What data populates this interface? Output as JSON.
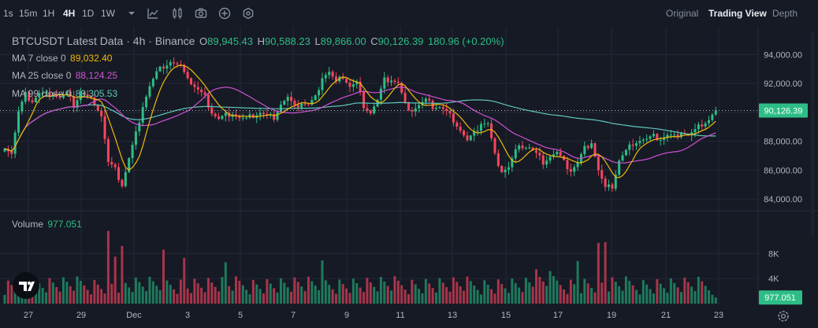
{
  "toolbar": {
    "intervals": [
      "1s",
      "15m",
      "1H",
      "4H",
      "1D",
      "1W"
    ],
    "active_interval": "4H",
    "views": [
      "Original",
      "Trading View",
      "Depth"
    ],
    "active_view": "Trading View",
    "icons": [
      "dropdown-caret-icon",
      "indicators-icon",
      "candle-style-icon",
      "screenshot-icon",
      "add-icon",
      "settings-hex-icon"
    ]
  },
  "legend": {
    "title": "BTCUSDT Latest Data · 4h · Binance",
    "ohlc": {
      "o_label": "O",
      "o": "89,945.43",
      "h_label": "H",
      "h": "90,588.23",
      "l_label": "L",
      "l": "89,866.00",
      "c_label": "C",
      "c": "90,126.39",
      "change": "180.96 (+0.20%)"
    },
    "ma7_label": "MA 7 close 0",
    "ma7_value": "89,032.40",
    "ma25_label": "MA 25 close 0",
    "ma25_value": "88,124.25",
    "ma99_label": "MA 99 close 0",
    "ma99_value": "89,305.53",
    "volume_label": "Volume",
    "volume_value": "977.051"
  },
  "colors": {
    "up": "#2dbd85",
    "down": "#f6465d",
    "ma7": "#f0b90b",
    "ma25": "#d152d4",
    "ma99": "#5ec8bc",
    "vol_up": "#1e7a5c",
    "vol_down": "#a8354a",
    "grid": "#242836",
    "background": "#161a25"
  },
  "chart_data": [
    {
      "type": "candlestick",
      "title": "BTCUSDT Latest Data · 4h · Binance",
      "x_ticks": [
        "27",
        "29",
        "Dec",
        "3",
        "5",
        "7",
        "9",
        "11",
        "13",
        "15",
        "17",
        "19",
        "21",
        "23"
      ],
      "y_ticks": [
        "84,000.00",
        "86,000.00",
        "88,000.00",
        "90,000.00",
        "92,000.00",
        "94,000.00"
      ],
      "y_tick_values": [
        84000,
        86000,
        88000,
        90000,
        92000,
        94000
      ],
      "ylim": [
        83300,
        95700
      ],
      "last_price": "90,126.39",
      "last_price_value": 90126.39,
      "grid": true,
      "close_anchors": [
        [
          0,
          87700
        ],
        [
          2,
          87200
        ],
        [
          4,
          90000
        ],
        [
          6,
          91200
        ],
        [
          8,
          90800
        ],
        [
          10,
          91300
        ],
        [
          12,
          91200
        ],
        [
          14,
          91400
        ],
        [
          16,
          91000
        ],
        [
          18,
          91300
        ],
        [
          20,
          90500
        ],
        [
          22,
          91400
        ],
        [
          24,
          91000
        ],
        [
          26,
          90700
        ],
        [
          28,
          89800
        ],
        [
          30,
          86500
        ],
        [
          32,
          86000
        ],
        [
          34,
          85000
        ],
        [
          36,
          86800
        ],
        [
          38,
          88500
        ],
        [
          40,
          90500
        ],
        [
          42,
          91800
        ],
        [
          44,
          92700
        ],
        [
          46,
          93200
        ],
        [
          48,
          93500
        ],
        [
          50,
          93200
        ],
        [
          52,
          93000
        ],
        [
          54,
          92000
        ],
        [
          56,
          91500
        ],
        [
          58,
          91000
        ],
        [
          60,
          90000
        ],
        [
          62,
          89500
        ],
        [
          64,
          89800
        ],
        [
          66,
          90000
        ],
        [
          68,
          89600
        ],
        [
          70,
          89500
        ],
        [
          72,
          89800
        ],
        [
          74,
          90000
        ],
        [
          76,
          89700
        ],
        [
          78,
          89700
        ],
        [
          80,
          90600
        ],
        [
          82,
          91000
        ],
        [
          84,
          90300
        ],
        [
          86,
          90700
        ],
        [
          88,
          90500
        ],
        [
          90,
          91000
        ],
        [
          92,
          92500
        ],
        [
          94,
          92800
        ],
        [
          96,
          92000
        ],
        [
          98,
          92500
        ],
        [
          100,
          91800
        ],
        [
          102,
          92000
        ],
        [
          104,
          90500
        ],
        [
          106,
          90000
        ],
        [
          108,
          90800
        ],
        [
          110,
          92200
        ],
        [
          112,
          92300
        ],
        [
          114,
          92000
        ],
        [
          116,
          90500
        ],
        [
          118,
          90200
        ],
        [
          120,
          90500
        ],
        [
          122,
          90800
        ],
        [
          124,
          90400
        ],
        [
          126,
          90400
        ],
        [
          128,
          90000
        ],
        [
          130,
          89500
        ],
        [
          132,
          88800
        ],
        [
          134,
          88000
        ],
        [
          136,
          88500
        ],
        [
          138,
          89300
        ],
        [
          140,
          89200
        ],
        [
          142,
          87000
        ],
        [
          144,
          86000
        ],
        [
          146,
          86200
        ],
        [
          148,
          87300
        ],
        [
          150,
          87700
        ],
        [
          152,
          87600
        ],
        [
          154,
          87100
        ],
        [
          156,
          86600
        ],
        [
          158,
          87000
        ],
        [
          160,
          87200
        ],
        [
          162,
          86500
        ],
        [
          164,
          86000
        ],
        [
          166,
          86500
        ],
        [
          168,
          87500
        ],
        [
          170,
          88000
        ],
        [
          172,
          86000
        ],
        [
          174,
          84700
        ],
        [
          176,
          84900
        ],
        [
          178,
          86700
        ],
        [
          180,
          87300
        ],
        [
          182,
          87900
        ],
        [
          184,
          88100
        ],
        [
          186,
          88100
        ],
        [
          188,
          88300
        ],
        [
          190,
          88200
        ],
        [
          192,
          88400
        ],
        [
          194,
          88300
        ],
        [
          196,
          88700
        ],
        [
          198,
          88400
        ],
        [
          200,
          88700
        ],
        [
          202,
          89200
        ],
        [
          204,
          89500
        ],
        [
          206,
          90126
        ]
      ],
      "ma_series": [
        {
          "name": "MA 7 close 0",
          "period": 7,
          "value": "89,032.40"
        },
        {
          "name": "MA 25 close 0",
          "period": 25,
          "value": "88,124.25"
        },
        {
          "name": "MA 99 close 0",
          "period": 99,
          "value": "89,305.53"
        }
      ]
    },
    {
      "type": "bar",
      "ylabel": "Volume",
      "y_ticks": [
        "4K",
        "8K"
      ],
      "y_tick_values": [
        4000,
        8000
      ],
      "ylim": [
        0,
        11800
      ],
      "last_value": "977.051",
      "last_value_num": 977.051,
      "highlight_volumes": [
        [
          30,
          11600
        ],
        [
          32,
          7500
        ],
        [
          34,
          9200
        ],
        [
          46,
          8600
        ],
        [
          52,
          7300
        ],
        [
          64,
          6600
        ],
        [
          92,
          6900
        ],
        [
          154,
          5500
        ],
        [
          166,
          6800
        ],
        [
          172,
          9700
        ],
        [
          174,
          9800
        ],
        [
          158,
          5200
        ]
      ]
    }
  ]
}
